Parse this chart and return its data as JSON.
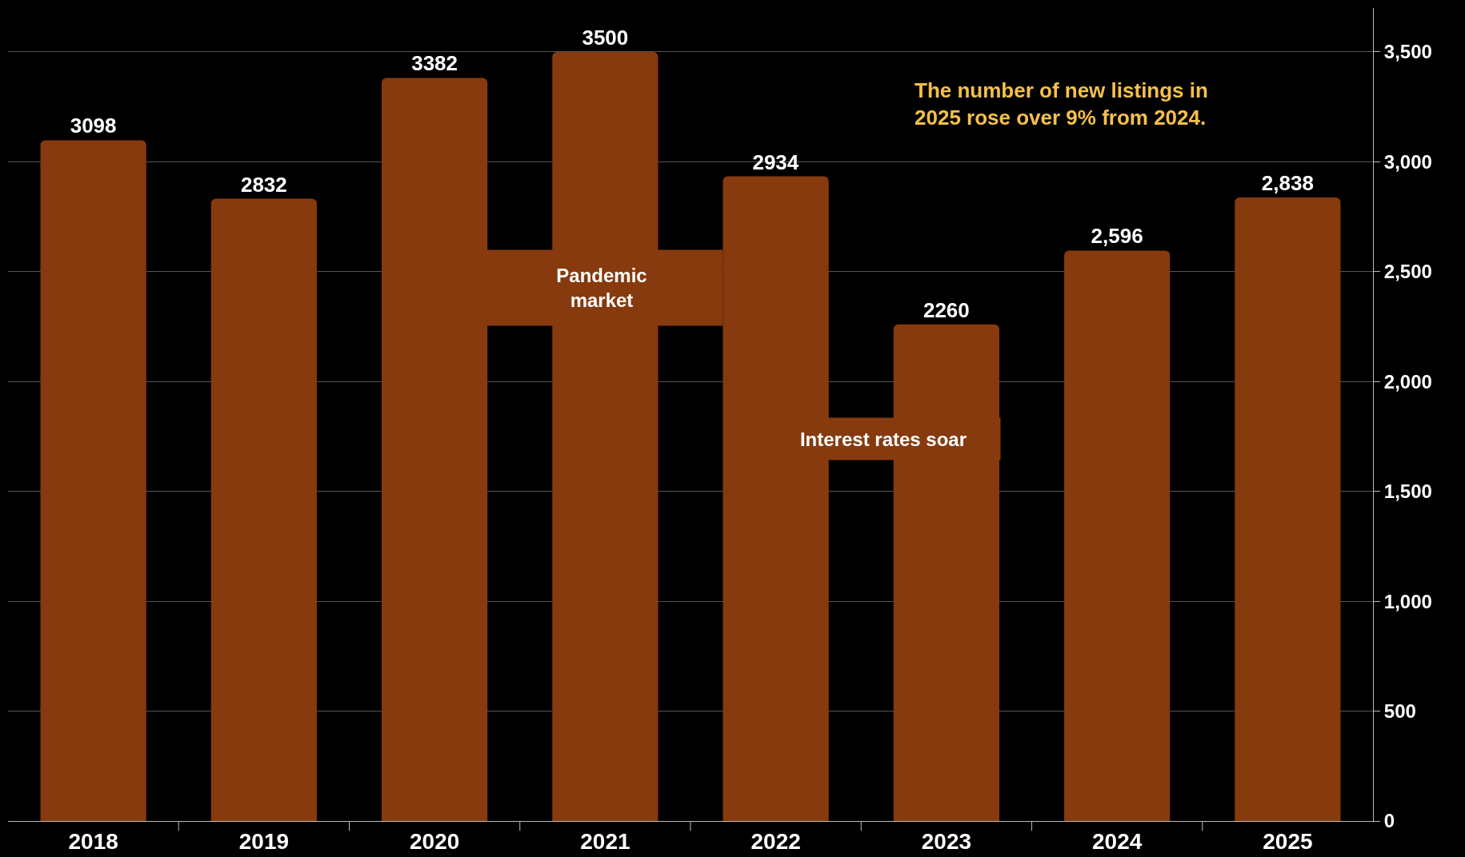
{
  "chart_data": {
    "type": "bar",
    "categories": [
      "2018",
      "2019",
      "2020",
      "2021",
      "2022",
      "2023",
      "2024",
      "2025"
    ],
    "values": [
      3098,
      2832,
      3382,
      3500,
      2934,
      2260,
      2596,
      2838
    ],
    "value_labels": [
      "3098",
      "2832",
      "3382",
      "3500",
      "2934",
      "2260",
      "2,596",
      "2,838"
    ],
    "color": "#873a0e",
    "ylim": [
      0,
      3700
    ],
    "yticks": [
      0,
      {
        "value": 500,
        "label": "500"
      },
      {
        "value": 1000,
        "label": "1,000"
      },
      {
        "value": 1500,
        "label": "1,500"
      },
      {
        "value": 2000,
        "label": "2,000"
      },
      {
        "value": 2500,
        "label": "2,500"
      },
      {
        "value": 3000,
        "label": "3,000"
      },
      {
        "value": 3500,
        "label": "3,500"
      }
    ],
    "grid": "y",
    "annotations": [
      "Pandemic market",
      "Interest rates soar",
      "The number of new listings in 2025 rose over 9% from 2024."
    ]
  }
}
